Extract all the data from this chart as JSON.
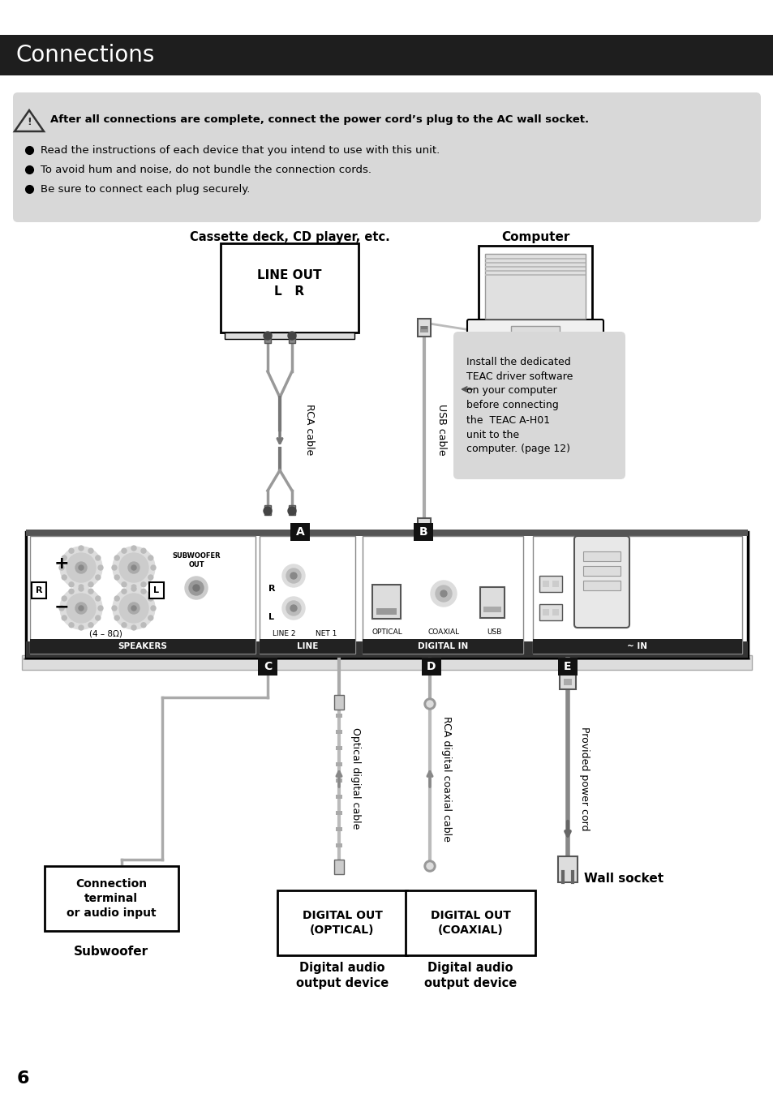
{
  "title": "Connections",
  "title_bg": "#1e1e1e",
  "title_color": "#ffffff",
  "page_bg": "#ffffff",
  "warning_bg": "#d8d8d8",
  "warning_text": "After all connections are complete, connect the power cord’s plug to the AC wall socket.",
  "bullet1": "Read the instructions of each device that you intend to use with this unit.",
  "bullet2": "To avoid hum and noise, do not bundle the connection cords.",
  "bullet3": "Be sure to connect each plug securely.",
  "cassette_label": "Cassette deck, CD player, etc.",
  "computer_label": "Computer",
  "rca_label": "RCA cable",
  "usb_label": "USB cable",
  "note_text": "Install the dedicated\nTEAC driver software\non your computer\nbefore connecting\nthe  TEAC A-H01\nunit to the\ncomputer. (page 12)",
  "label_A": "A",
  "label_B": "B",
  "label_C": "C",
  "label_D": "D",
  "label_E": "E",
  "optical_cable_label": "Optical digital cable",
  "rca_digital_label": "RCA digital coaxial cable",
  "power_cord_label": "Provided power cord",
  "conn_terminal_label": "Connection\nterminal\nor audio input",
  "digital_out_optical": "DIGITAL OUT\n(OPTICAL)",
  "digital_out_coaxial": "DIGITAL OUT\n(COAXIAL)",
  "wall_socket_label": "Wall socket",
  "subwoofer_label2": "Subwoofer",
  "digital_audio1": "Digital audio\noutput device",
  "digital_audio2": "Digital audio\noutput device",
  "page_num": "6",
  "gray_line": "#888888",
  "dark_gray": "#555555"
}
